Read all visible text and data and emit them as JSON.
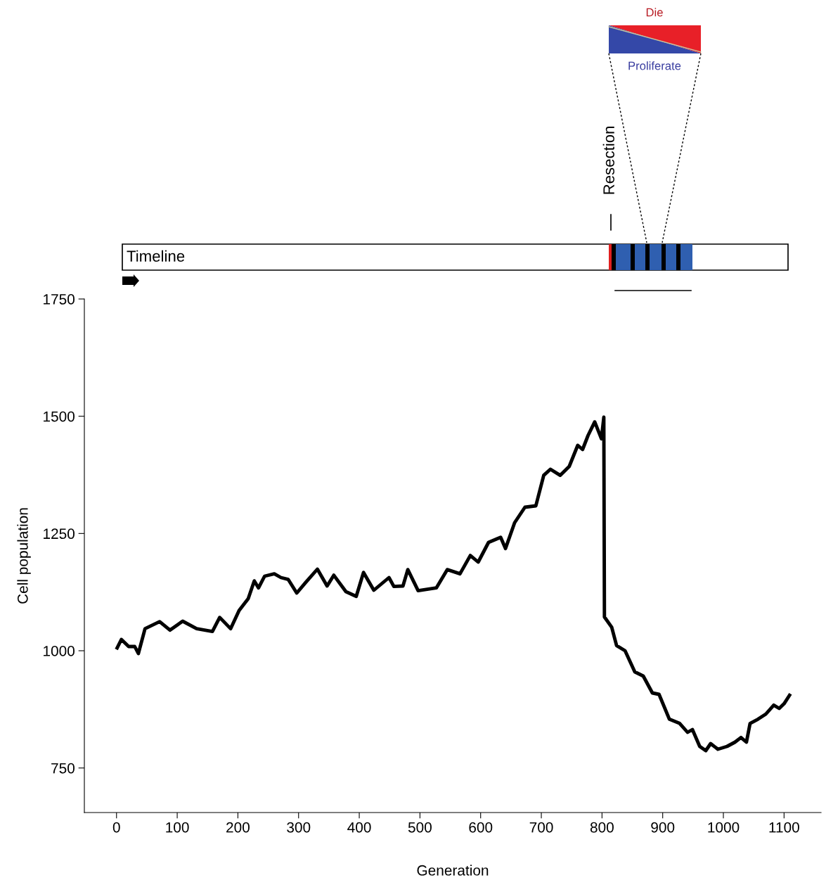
{
  "chart_data": {
    "type": "line",
    "xlabel": "Generation",
    "ylabel": "Cell population",
    "xlim": [
      -53,
      1161
    ],
    "xticks": [
      0,
      100,
      200,
      300,
      400,
      500,
      600,
      700,
      800,
      900,
      1000,
      1100
    ],
    "ylim": [
      655,
      1750
    ],
    "yticks": [
      750,
      1000,
      1250,
      1500,
      1750
    ],
    "grid": false,
    "legend": false,
    "marker": "none",
    "line_style": "solid",
    "annotations": [
      "Timeline",
      "Resection",
      "Die",
      "Proliferate"
    ],
    "series": [
      {
        "color": "#000000",
        "x": [
          1,
          8,
          20,
          30,
          36,
          47,
          71,
          88,
          109,
          132,
          158,
          170,
          188,
          202,
          217,
          227,
          234,
          244,
          260,
          271,
          283,
          297,
          312,
          331,
          347,
          358,
          378,
          395,
          407,
          424,
          449,
          457,
          472,
          480,
          497,
          527,
          545,
          566,
          583,
          596,
          613,
          633,
          641,
          656,
          673,
          691,
          704,
          715,
          731,
          746,
          760,
          768,
          777,
          788,
          799,
          803,
          804,
          816,
          824,
          838,
          854,
          868,
          883,
          894,
          911,
          928,
          941,
          949,
          961,
          971,
          979,
          991,
          1006,
          1019,
          1029,
          1038,
          1044,
          1057,
          1070,
          1083,
          1092,
          1100,
          1109
        ],
        "values": [
          1006,
          1024,
          1009,
          1009,
          994,
          1047,
          1062,
          1044,
          1063,
          1047,
          1041,
          1071,
          1047,
          1086,
          1111,
          1149,
          1134,
          1159,
          1164,
          1156,
          1152,
          1123,
          1146,
          1174,
          1138,
          1161,
          1126,
          1116,
          1167,
          1129,
          1156,
          1137,
          1138,
          1173,
          1128,
          1134,
          1173,
          1164,
          1203,
          1189,
          1231,
          1242,
          1218,
          1273,
          1306,
          1309,
          1374,
          1387,
          1374,
          1393,
          1438,
          1429,
          1459,
          1488,
          1452,
          1498,
          1072,
          1050,
          1011,
          1000,
          955,
          946,
          910,
          907,
          854,
          845,
          826,
          832,
          796,
          787,
          802,
          790,
          796,
          805,
          815,
          805,
          845,
          854,
          865,
          884,
          877,
          887,
          905
        ]
      }
    ]
  }
}
